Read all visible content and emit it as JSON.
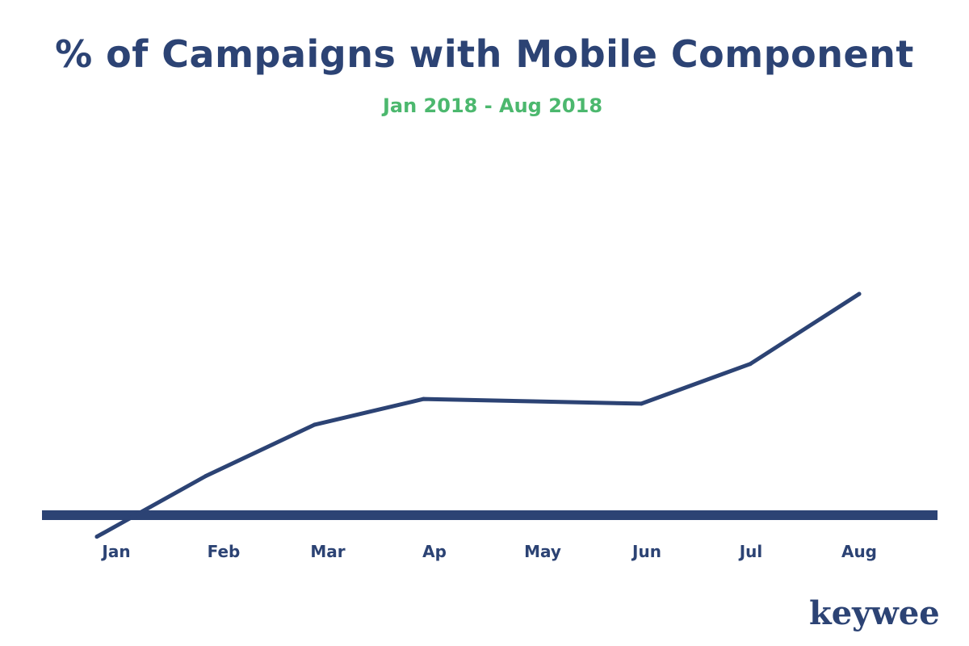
{
  "chart_data": {
    "type": "line",
    "title": "% of Campaigns with Mobile Component",
    "subtitle": "Jan 2018 - Aug 2018",
    "categories": [
      "Jan",
      "Feb",
      "Mar",
      "Ap",
      "May",
      "Jun",
      "Jul",
      "Aug"
    ],
    "series": [
      {
        "values": [
          30,
          43,
          54,
          59.5,
          59,
          58.5,
          67,
          82
        ]
      }
    ],
    "ylim": [
      0,
      100
    ],
    "xlabel": "",
    "ylabel": "",
    "grid": false,
    "legend": "none"
  },
  "brand": {
    "logo_text": "keywee"
  },
  "colors": {
    "line": "#2c4374",
    "axis": "#2c4374",
    "subtitle": "#4cb86e",
    "title": "#2c4374"
  }
}
